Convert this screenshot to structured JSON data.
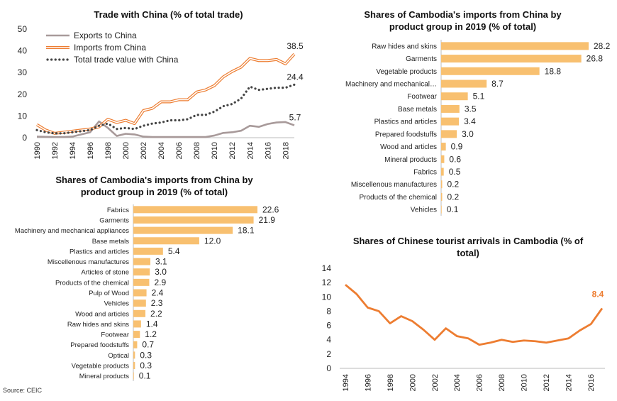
{
  "source": "Source: CEIC",
  "chart_data": [
    {
      "type": "line",
      "title": "Trade with China (% of total trade)",
      "ylim": [
        0,
        50
      ],
      "yticks": [
        0,
        10,
        20,
        30,
        40,
        50
      ],
      "xticks": [
        "1990",
        "1992",
        "1994",
        "1996",
        "1998",
        "2000",
        "2002",
        "2004",
        "2006",
        "2008",
        "2010",
        "2012",
        "2014",
        "2016",
        "2018"
      ],
      "x": [
        1990,
        1991,
        1992,
        1993,
        1994,
        1995,
        1996,
        1997,
        1998,
        1999,
        2000,
        2001,
        2002,
        2003,
        2004,
        2005,
        2006,
        2007,
        2008,
        2009,
        2010,
        2011,
        2012,
        2013,
        2014,
        2015,
        2016,
        2017,
        2018,
        2019
      ],
      "legend_position": "top-left",
      "series": [
        {
          "name": "Exports to China",
          "color": "#a89a9a",
          "style": "solid",
          "values": [
            0.5,
            0.4,
            0.3,
            0.3,
            0.5,
            1.5,
            2.5,
            7.5,
            4.5,
            0.8,
            1.8,
            1.5,
            0.5,
            0.3,
            0.3,
            0.3,
            0.3,
            0.3,
            0.3,
            0.3,
            1.0,
            2.2,
            2.5,
            3.2,
            5.5,
            5.0,
            6.3,
            7.0,
            7.2,
            5.7
          ],
          "end_label": "5.7"
        },
        {
          "name": "Imports from China",
          "color": "#ed7d31",
          "style": "double",
          "values": [
            6.0,
            3.5,
            2.0,
            2.5,
            3.0,
            3.5,
            4.0,
            5.0,
            8.5,
            7.0,
            8.0,
            6.5,
            12.5,
            13.5,
            16.5,
            16.5,
            17.5,
            17.5,
            21.0,
            22.0,
            24.0,
            28.0,
            30.5,
            32.5,
            36.5,
            35.5,
            35.5,
            36.0,
            34.0,
            38.5
          ],
          "end_label": "38.5"
        },
        {
          "name": "Total trade value with China",
          "color": "#444444",
          "style": "dotted",
          "values": [
            3.5,
            2.5,
            2.0,
            2.0,
            2.5,
            3.0,
            3.5,
            5.5,
            6.5,
            4.0,
            4.5,
            4.0,
            5.5,
            6.5,
            7.0,
            8.0,
            8.0,
            8.5,
            10.5,
            10.5,
            12.0,
            14.5,
            15.5,
            18.0,
            23.5,
            22.0,
            22.5,
            23.0,
            23.0,
            24.4
          ],
          "end_label": "24.4"
        }
      ]
    },
    {
      "type": "bar",
      "orientation": "horizontal",
      "title": "Shares of Cambodia's imports from China by product group in 2019 (% of total)",
      "color": "#f8c070",
      "categories": [
        "Raw hides and skins",
        "Garments",
        "Vegetable products",
        "Machinery and mechanical…",
        "Footwear",
        "Base metals",
        "Plastics and articles",
        "Prepared foodstuffs",
        "Wood and articles",
        "Mineral products",
        "Fabrics",
        "Miscellenous manufactures",
        "Products of the chemical",
        "Vehicles"
      ],
      "values": [
        28.2,
        26.8,
        18.8,
        8.7,
        5.1,
        3.5,
        3.4,
        3.0,
        0.9,
        0.6,
        0.5,
        0.2,
        0.2,
        0.1
      ],
      "labels": [
        "28.2",
        "26.8",
        "18.8",
        "8.7",
        "5.1",
        "3.5",
        "3.4",
        "3.0",
        "0.9",
        "0.6",
        "0.5",
        "0.2",
        "0.2",
        "0.1"
      ]
    },
    {
      "type": "bar",
      "orientation": "horizontal",
      "title": "Shares of Cambodia's imports from China by product group in 2019 (% of total)",
      "color": "#f8c070",
      "categories": [
        "Fabrics",
        "Garments",
        "Machinery and mechanical appliances",
        "Base metals",
        "Plastics and articles",
        "Miscellenous manufactures",
        "Articles of stone",
        "Products of the chemical",
        "Pulp of Wood",
        "Vehicles",
        "Wood and articles",
        "Raw hides and skins",
        "Footwear",
        "Prepared foodstuffs",
        "Optical",
        "Vegetable products",
        "Mineral products"
      ],
      "values": [
        22.6,
        21.9,
        18.1,
        12.0,
        5.4,
        3.1,
        3.0,
        2.9,
        2.4,
        2.3,
        2.2,
        1.4,
        1.2,
        0.7,
        0.3,
        0.3,
        0.1
      ],
      "labels": [
        "22.6",
        "21.9",
        "18.1",
        "12.0",
        "5.4",
        "3.1",
        "3.0",
        "2.9",
        "2.4",
        "2.3",
        "2.2",
        "1.4",
        "1.2",
        "0.7",
        "0.3",
        "0.3",
        "0.1"
      ]
    },
    {
      "type": "line",
      "title": "Shares of Chinese tourist arrivals in Cambodia (% of total)",
      "ylim": [
        0,
        14
      ],
      "yticks": [
        0,
        2,
        4,
        6,
        8,
        10,
        12,
        14
      ],
      "xticks": [
        "1994",
        "1996",
        "1998",
        "2000",
        "2002",
        "2004",
        "2006",
        "2008",
        "2010",
        "2012",
        "2014",
        "2016"
      ],
      "x": [
        1994,
        1995,
        1996,
        1997,
        1998,
        1999,
        2000,
        2001,
        2002,
        2003,
        2004,
        2005,
        2006,
        2007,
        2008,
        2009,
        2010,
        2011,
        2012,
        2013,
        2014,
        2015,
        2016,
        2017
      ],
      "series": [
        {
          "color": "#ed7d31",
          "values": [
            11.7,
            10.4,
            8.5,
            8.0,
            6.3,
            7.3,
            6.6,
            5.4,
            4.0,
            5.6,
            4.5,
            4.2,
            3.3,
            3.6,
            4.0,
            3.7,
            3.9,
            3.8,
            3.6,
            3.9,
            4.2,
            5.3,
            6.2,
            8.4
          ],
          "end_label": "8.4"
        }
      ]
    }
  ]
}
